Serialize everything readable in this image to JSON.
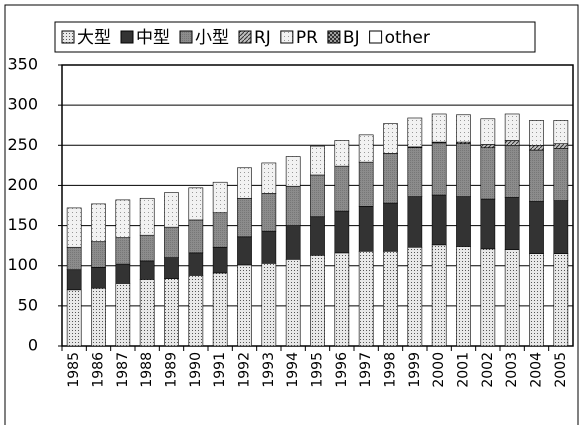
{
  "chart_data": {
    "type": "bar",
    "stacked": true,
    "categories": [
      "1985",
      "1986",
      "1987",
      "1988",
      "1989",
      "1990",
      "1991",
      "1992",
      "1993",
      "1994",
      "1995",
      "1996",
      "1997",
      "1998",
      "1999",
      "2000",
      "2001",
      "2002",
      "2003",
      "2004",
      "2005"
    ],
    "series": [
      {
        "name": "大型",
        "color": "#e8e8e8",
        "values": [
          70,
          72,
          78,
          83,
          84,
          88,
          91,
          101,
          103,
          108,
          113,
          116,
          118,
          118,
          123,
          126,
          124,
          121,
          120,
          115,
          115
        ]
      },
      {
        "name": "中型",
        "color": "#333333",
        "values": [
          25,
          26,
          24,
          23,
          26,
          28,
          32,
          35,
          40,
          42,
          48,
          52,
          56,
          60,
          63,
          62,
          62,
          62,
          65,
          65,
          66
        ]
      },
      {
        "name": "小型",
        "color": "#8c8c8c",
        "values": [
          28,
          32,
          33,
          32,
          38,
          41,
          43,
          48,
          47,
          49,
          52,
          56,
          55,
          62,
          61,
          65,
          66,
          64,
          65,
          64,
          65
        ]
      },
      {
        "name": "RJ",
        "color": "#c0c0c0",
        "values": [
          0,
          0,
          0,
          0,
          0,
          0,
          0,
          0,
          0,
          0,
          0,
          0,
          0,
          0,
          1,
          1,
          2,
          4,
          6,
          6,
          6
        ]
      },
      {
        "name": "PR",
        "color": "#f2f2f2",
        "values": [
          49,
          47,
          47,
          46,
          43,
          40,
          38,
          38,
          38,
          37,
          36,
          32,
          34,
          37,
          36,
          35,
          34,
          32,
          33,
          31,
          29
        ]
      },
      {
        "name": "BJ",
        "color": "#a0a0a0",
        "values": [
          0,
          0,
          0,
          0,
          0,
          0,
          0,
          0,
          0,
          0,
          0,
          0,
          0,
          0,
          0,
          0,
          0,
          0,
          0,
          0,
          0
        ]
      },
      {
        "name": "other",
        "color": "#ffffff",
        "values": [
          0,
          0,
          0,
          0,
          0,
          0,
          0,
          0,
          0,
          0,
          0,
          0,
          0,
          0,
          0,
          0,
          0,
          0,
          0,
          0,
          0
        ]
      }
    ],
    "ylim": [
      0,
      350
    ],
    "yticks": [
      0,
      50,
      100,
      150,
      200,
      250,
      300,
      350
    ],
    "grid": true
  }
}
